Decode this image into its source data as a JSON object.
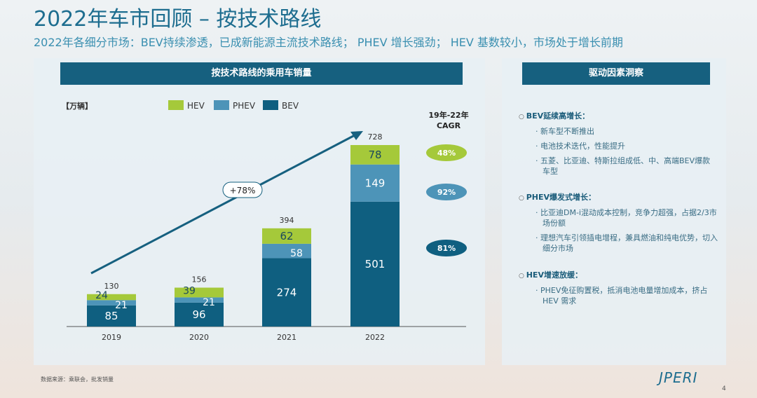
{
  "title": "2022年车市回顾 – 按技术路线",
  "subtitle": "2022年各细分市场：BEV持续渗透，已成新能源主流技术路线； PHEV 增长强劲； HEV 基数较小，市场处于增长前期",
  "chart_data": {
    "type": "bar",
    "stacked": true,
    "title": "按技术路线的乘用车销量",
    "unit_label": "【万辆】",
    "categories": [
      "2019",
      "2020",
      "2021",
      "2022"
    ],
    "series": [
      {
        "name": "BEV",
        "color": "#0f5f80",
        "values": [
          85,
          96,
          274,
          501
        ]
      },
      {
        "name": "PHEV",
        "color": "#4d94b8",
        "values": [
          21,
          21,
          58,
          149
        ]
      },
      {
        "name": "HEV",
        "color": "#a5c93a",
        "values": [
          24,
          39,
          62,
          78
        ]
      }
    ],
    "totals": [
      130,
      156,
      394,
      728
    ],
    "legend_order": [
      "HEV",
      "PHEV",
      "BEV"
    ],
    "annotation": "+78%",
    "cagr_title": "19年-22年 CAGR",
    "cagr": [
      {
        "series": "HEV",
        "value": "48%"
      },
      {
        "series": "PHEV",
        "value": "92%"
      },
      {
        "series": "BEV",
        "value": "81%"
      }
    ]
  },
  "right": {
    "header": "驱动因素洞察",
    "sections": [
      {
        "heading": "BEV延续高增长：",
        "items": [
          "新车型不断推出",
          "电池技术迭代，性能提升",
          "五菱、比亚迪、特斯拉组成低、中、高端BEV爆款车型"
        ]
      },
      {
        "heading": "PHEV爆发式增长：",
        "items": [
          "比亚迪DM-i混动成本控制，竞争力超强，占据2/3市场份额",
          "理想汽车引领插电增程，兼具燃油和纯电优势，切入细分市场"
        ]
      },
      {
        "heading": "HEV增速放缓：",
        "items": [
          "PHEV免征购置税，抵消电池电量增加成本，挤占 HEV 需求"
        ]
      }
    ]
  },
  "source": "数据来源：乘联会，批发销量",
  "logo": "JPERI",
  "page": "4"
}
